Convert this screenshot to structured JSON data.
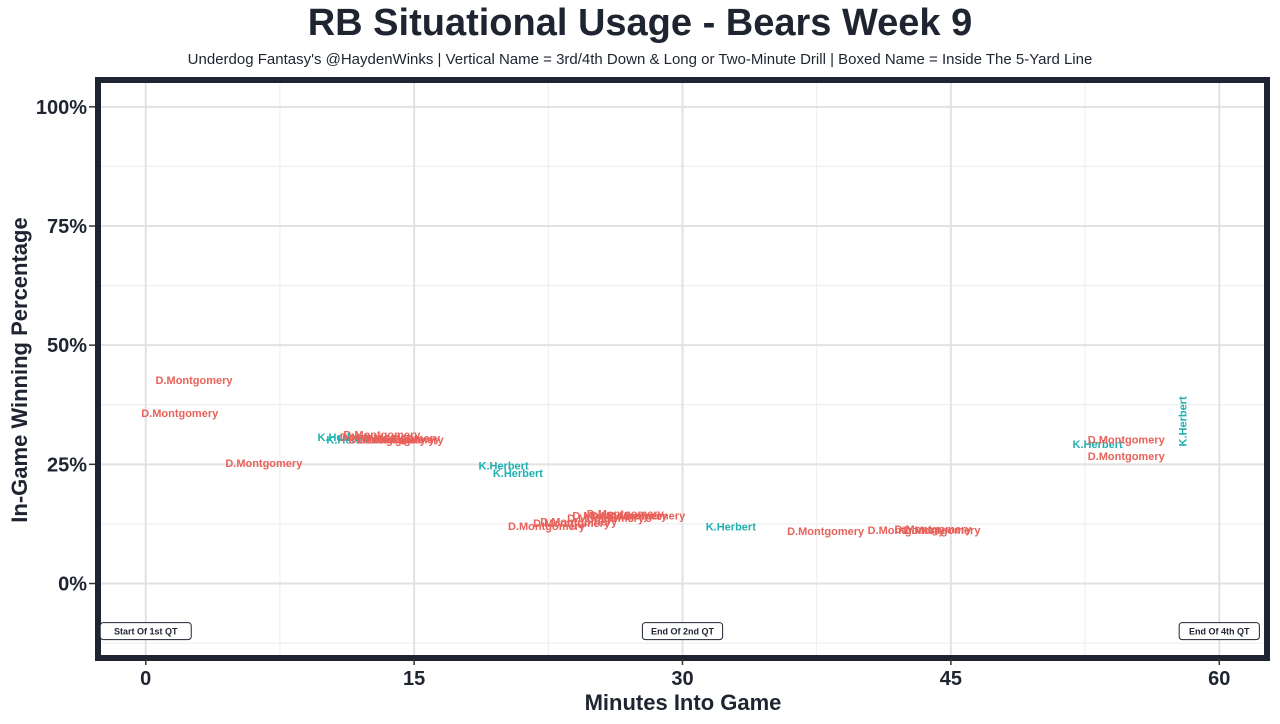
{
  "chart_data": {
    "type": "scatter",
    "title": "RB Situational Usage - Bears Week 9",
    "subtitle": "Underdog Fantasy's @HaydenWinks | Vertical Name = 3rd/4th Down & Long or Two-Minute Drill | Boxed Name = Inside The 5-Yard Line",
    "xlabel": "Minutes Into Game",
    "ylabel": "In-Game Winning Percentage",
    "xlim": [
      -2.5,
      62.5
    ],
    "ylim": [
      -15,
      105
    ],
    "x_ticks": [
      0,
      15,
      30,
      45,
      60
    ],
    "x_tick_labels": [
      "0",
      "15",
      "30",
      "45",
      "60"
    ],
    "y_ticks": [
      0,
      25,
      50,
      75,
      100
    ],
    "y_tick_labels": [
      "0%",
      "25%",
      "50%",
      "75%",
      "100%"
    ],
    "grid": true,
    "colors": {
      "D.Montgomery": "#e8615a",
      "K.Herbert": "#1fb0b0",
      "frame": "#1e2430"
    },
    "points": [
      {
        "x": 2.7,
        "y": 42.5,
        "label": "D.Montgomery"
      },
      {
        "x": 1.9,
        "y": 35.5,
        "label": "D.Montgomery"
      },
      {
        "x": 6.6,
        "y": 25.0,
        "label": "D.Montgomery"
      },
      {
        "x": 11.0,
        "y": 30.5,
        "label": "K.Herbert"
      },
      {
        "x": 11.5,
        "y": 30.0,
        "label": "K.Herbert"
      },
      {
        "x": 13.2,
        "y": 31.0,
        "label": "D.Montgomery"
      },
      {
        "x": 13.0,
        "y": 30.5,
        "label": "D.Montgomery"
      },
      {
        "x": 13.5,
        "y": 30.0,
        "label": "D.Montgomery"
      },
      {
        "x": 14.0,
        "y": 30.0,
        "label": "D.Montgomery"
      },
      {
        "x": 14.5,
        "y": 30.0,
        "label": "D.Montgomery"
      },
      {
        "x": 14.3,
        "y": 30.3,
        "label": "D.Montgomery"
      },
      {
        "x": 20.0,
        "y": 24.5,
        "label": "K.Herbert"
      },
      {
        "x": 20.8,
        "y": 23.0,
        "label": "K.Herbert"
      },
      {
        "x": 22.4,
        "y": 11.8,
        "label": "D.Montgomery"
      },
      {
        "x": 23.8,
        "y": 12.5,
        "label": "D.Montgomery"
      },
      {
        "x": 24.2,
        "y": 12.8,
        "label": "D.Montgomery"
      },
      {
        "x": 25.7,
        "y": 13.5,
        "label": "D.Montgomery"
      },
      {
        "x": 26.0,
        "y": 14.0,
        "label": "D.Montgomery"
      },
      {
        "x": 26.8,
        "y": 14.5,
        "label": "D.Montgomery"
      },
      {
        "x": 27.0,
        "y": 14.0,
        "label": "D.Montgomery"
      },
      {
        "x": 28.0,
        "y": 14.0,
        "label": "D.Montgomery"
      },
      {
        "x": 32.7,
        "y": 11.7,
        "label": "K.Herbert"
      },
      {
        "x": 38.0,
        "y": 10.8,
        "label": "D.Montgomery"
      },
      {
        "x": 42.5,
        "y": 11.0,
        "label": "D.Montgomery"
      },
      {
        "x": 44.0,
        "y": 11.2,
        "label": "D.Montgomery"
      },
      {
        "x": 44.5,
        "y": 11.0,
        "label": "D.Montgomery"
      },
      {
        "x": 53.2,
        "y": 29.0,
        "label": "K.Herbert"
      },
      {
        "x": 54.8,
        "y": 30.0,
        "label": "D.Montgomery"
      },
      {
        "x": 54.8,
        "y": 26.5,
        "label": "D.Montgomery"
      },
      {
        "x": 58.0,
        "y": 34.0,
        "label": "K.Herbert",
        "vertical": true
      }
    ],
    "annotations": [
      {
        "x": 0,
        "label": "Start Of 1st QT"
      },
      {
        "x": 30,
        "label": "End Of 2nd QT"
      },
      {
        "x": 60,
        "label": "End Of 4th QT"
      }
    ]
  }
}
